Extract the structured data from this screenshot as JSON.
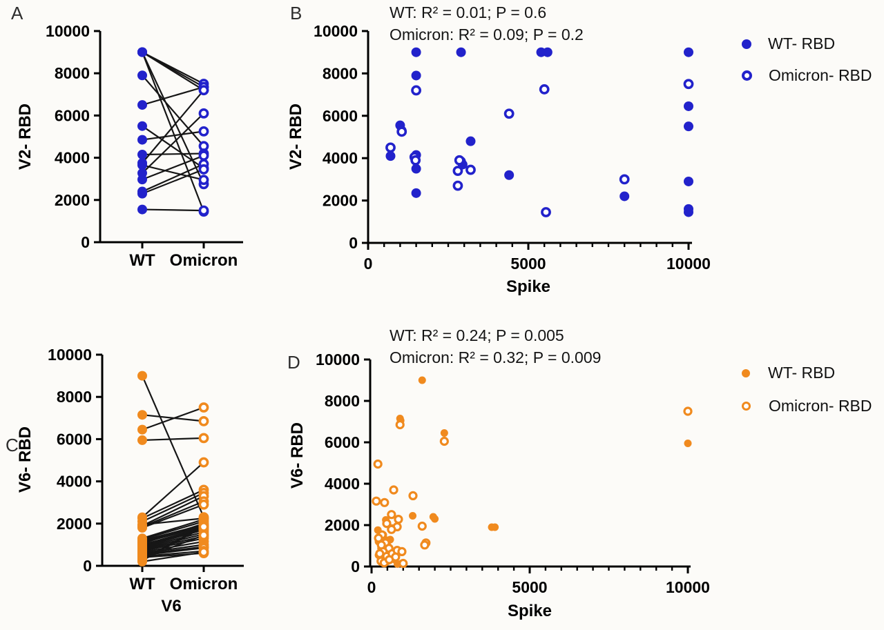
{
  "figure": {
    "background": "#fcfbf8"
  },
  "colors": {
    "blue": "#2222CB",
    "orange": "#F08A1E",
    "axis": "#000000",
    "pair_line": "#161616"
  },
  "panels": {
    "A": {
      "letter": "A",
      "ylabel": "V2- RBD"
    },
    "B": {
      "letter": "B",
      "ylabel": "V2- RBD",
      "xlabel": "Spike",
      "title_line1": "WT: R² = 0.01; P = 0.6",
      "title_line2": "Omicron: R² = 0.09; P = 0.2",
      "legend": {
        "filled": "WT- RBD",
        "open": "Omicron- RBD"
      }
    },
    "C": {
      "letter": "C",
      "ylabel": "V6- RBD",
      "xlabel": "V6"
    },
    "D": {
      "letter": "D",
      "ylabel": "V6- RBD",
      "xlabel": "Spike",
      "title_line1": "WT: R² = 0.24; P = 0.005",
      "title_line2": "Omicron: R² = 0.32; P = 0.009",
      "legend": {
        "filled": "WT- RBD",
        "open": "Omicron- RBD"
      }
    }
  },
  "chart_data": [
    {
      "id": "A",
      "type": "scatter",
      "subtype": "paired-before-after",
      "ylabel": "V2- RBD",
      "categories": [
        "WT",
        "Omicron"
      ],
      "ylim": [
        0,
        10000
      ],
      "yticks": [
        0,
        2000,
        4000,
        6000,
        8000,
        10000
      ],
      "color": "#2222CB",
      "wt_marker": "filled",
      "omicron_marker": "open",
      "pairs_wt_omicron": [
        [
          9000,
          7500
        ],
        [
          9000,
          7350
        ],
        [
          9000,
          7200
        ],
        [
          9000,
          2750
        ],
        [
          9000,
          1450
        ],
        [
          7900,
          4550
        ],
        [
          6500,
          7350
        ],
        [
          5500,
          3500
        ],
        [
          4850,
          5250
        ],
        [
          4150,
          4200
        ],
        [
          3750,
          7200
        ],
        [
          3650,
          2950
        ],
        [
          3270,
          6100
        ],
        [
          2970,
          4100
        ],
        [
          2400,
          3700
        ],
        [
          2300,
          3450
        ],
        [
          1550,
          1500
        ]
      ]
    },
    {
      "id": "B",
      "type": "scatter",
      "title": "WT: R² = 0.01; P = 0.6 | Omicron: R² = 0.09; P = 0.2",
      "xlabel": "Spike",
      "ylabel": "V2- RBD",
      "xlim": [
        0,
        10000
      ],
      "ylim": [
        0,
        10000
      ],
      "xticks": [
        0,
        5000,
        10000
      ],
      "yticks": [
        0,
        2000,
        4000,
        6000,
        8000,
        10000
      ],
      "x_minor_tick_step": 500,
      "grid": false,
      "legend_position": "right",
      "series": [
        {
          "name": "WT- RBD",
          "marker": "filled",
          "color": "#2222CB",
          "points": [
            [
              700,
              4100
            ],
            [
              1000,
              5550
            ],
            [
              1050,
              5300
            ],
            [
              1500,
              9000
            ],
            [
              1500,
              7900
            ],
            [
              1500,
              4150
            ],
            [
              1500,
              3500
            ],
            [
              1500,
              2350
            ],
            [
              2900,
              9000
            ],
            [
              2900,
              3850
            ],
            [
              2950,
              3700
            ],
            [
              3200,
              4800
            ],
            [
              4400,
              3200
            ],
            [
              5400,
              9000
            ],
            [
              5600,
              9000
            ],
            [
              8000,
              2200
            ],
            [
              10000,
              9000
            ],
            [
              10000,
              6450
            ],
            [
              10000,
              5500
            ],
            [
              10000,
              2900
            ],
            [
              10000,
              1600
            ],
            [
              10000,
              1450
            ]
          ]
        },
        {
          "name": "Omicron- RBD",
          "marker": "open",
          "color": "#2222CB",
          "points": [
            [
              700,
              4500
            ],
            [
              1050,
              5250
            ],
            [
              1500,
              7200
            ],
            [
              1450,
              4050
            ],
            [
              1480,
              3900
            ],
            [
              2850,
              3900
            ],
            [
              2800,
              3400
            ],
            [
              3200,
              3450
            ],
            [
              2800,
              2700
            ],
            [
              4400,
              6100
            ],
            [
              5500,
              7250
            ],
            [
              5550,
              1450
            ],
            [
              8000,
              3000
            ],
            [
              10000,
              7500
            ]
          ]
        }
      ]
    },
    {
      "id": "C",
      "type": "scatter",
      "subtype": "paired-before-after",
      "ylabel": "V6- RBD",
      "xlabel": "V6",
      "categories": [
        "WT",
        "Omicron"
      ],
      "ylim": [
        0,
        10000
      ],
      "yticks": [
        0,
        2000,
        4000,
        6000,
        8000,
        10000
      ],
      "color": "#F08A1E",
      "wt_marker": "filled",
      "omicron_marker": "open",
      "pairs_wt_omicron": [
        [
          9000,
          2300
        ],
        [
          7150,
          6850
        ],
        [
          6450,
          7500
        ],
        [
          5950,
          6050
        ],
        [
          2300,
          4900
        ],
        [
          2250,
          3600
        ],
        [
          2100,
          3450
        ],
        [
          1950,
          2250
        ],
        [
          1900,
          3300
        ],
        [
          1850,
          3050
        ],
        [
          1800,
          2900
        ],
        [
          1300,
          2200
        ],
        [
          1250,
          2100
        ],
        [
          1200,
          1950
        ],
        [
          1150,
          1900
        ],
        [
          1100,
          1850
        ],
        [
          1050,
          2000
        ],
        [
          1000,
          1800
        ],
        [
          950,
          1750
        ],
        [
          900,
          1700
        ],
        [
          850,
          1600
        ],
        [
          800,
          1500
        ],
        [
          750,
          1400
        ],
        [
          700,
          1300
        ],
        [
          650,
          1150
        ],
        [
          600,
          1000
        ],
        [
          550,
          900
        ],
        [
          500,
          850
        ],
        [
          450,
          700
        ],
        [
          400,
          600
        ],
        [
          350,
          1450
        ],
        [
          300,
          1900
        ],
        [
          250,
          1850
        ],
        [
          200,
          650
        ]
      ]
    },
    {
      "id": "D",
      "type": "scatter",
      "title": "WT: R² = 0.24; P = 0.005 | Omicron: R² = 0.32; P = 0.009",
      "xlabel": "Spike",
      "ylabel": "V6- RBD",
      "xlim": [
        0,
        10000
      ],
      "ylim": [
        0,
        10000
      ],
      "xticks": [
        0,
        5000,
        10000
      ],
      "yticks": [
        0,
        2000,
        4000,
        6000,
        8000,
        10000
      ],
      "x_minor_tick_step": 500,
      "grid": false,
      "legend_position": "right",
      "series": [
        {
          "name": "WT- RBD",
          "marker": "filled",
          "color": "#F08A1E",
          "points": [
            [
              1600,
              9000
            ],
            [
              900,
              7150
            ],
            [
              920,
              7050
            ],
            [
              2300,
              6450
            ],
            [
              10000,
              5950
            ],
            [
              3800,
              1900
            ],
            [
              3900,
              1900
            ],
            [
              1300,
              2450
            ],
            [
              1950,
              2400
            ],
            [
              2000,
              2300
            ],
            [
              450,
              2250
            ],
            [
              650,
              1860
            ],
            [
              200,
              1760
            ],
            [
              370,
              1530
            ],
            [
              480,
              1270
            ],
            [
              590,
              1300
            ],
            [
              220,
              1200
            ],
            [
              520,
              980
            ],
            [
              300,
              880
            ],
            [
              410,
              650
            ],
            [
              220,
              550
            ],
            [
              550,
              450
            ],
            [
              740,
              330
            ],
            [
              960,
              160
            ],
            [
              820,
              120
            ],
            [
              350,
              350
            ],
            [
              280,
              450
            ],
            [
              500,
              250
            ]
          ]
        },
        {
          "name": "Omicron- RBD",
          "marker": "open",
          "color": "#F08A1E",
          "points": [
            [
              10000,
              7500
            ],
            [
              900,
              6850
            ],
            [
              2300,
              6050
            ],
            [
              200,
              4950
            ],
            [
              700,
              3700
            ],
            [
              1310,
              3420
            ],
            [
              150,
              3160
            ],
            [
              410,
              3090
            ],
            [
              630,
              2510
            ],
            [
              850,
              2280
            ],
            [
              480,
              2080
            ],
            [
              810,
              1920
            ],
            [
              1600,
              1950
            ],
            [
              630,
              1790
            ],
            [
              1720,
              1140
            ],
            [
              1680,
              1040
            ],
            [
              330,
              1530
            ],
            [
              220,
              1370
            ],
            [
              440,
              1140
            ],
            [
              310,
              1040
            ],
            [
              550,
              880
            ],
            [
              370,
              720
            ],
            [
              260,
              620
            ],
            [
              480,
              490
            ],
            [
              650,
              620
            ],
            [
              810,
              780
            ],
            [
              960,
              720
            ],
            [
              760,
              460
            ],
            [
              1000,
              150
            ],
            [
              300,
              260
            ],
            [
              400,
              180
            ],
            [
              560,
              330
            ]
          ]
        }
      ]
    }
  ]
}
